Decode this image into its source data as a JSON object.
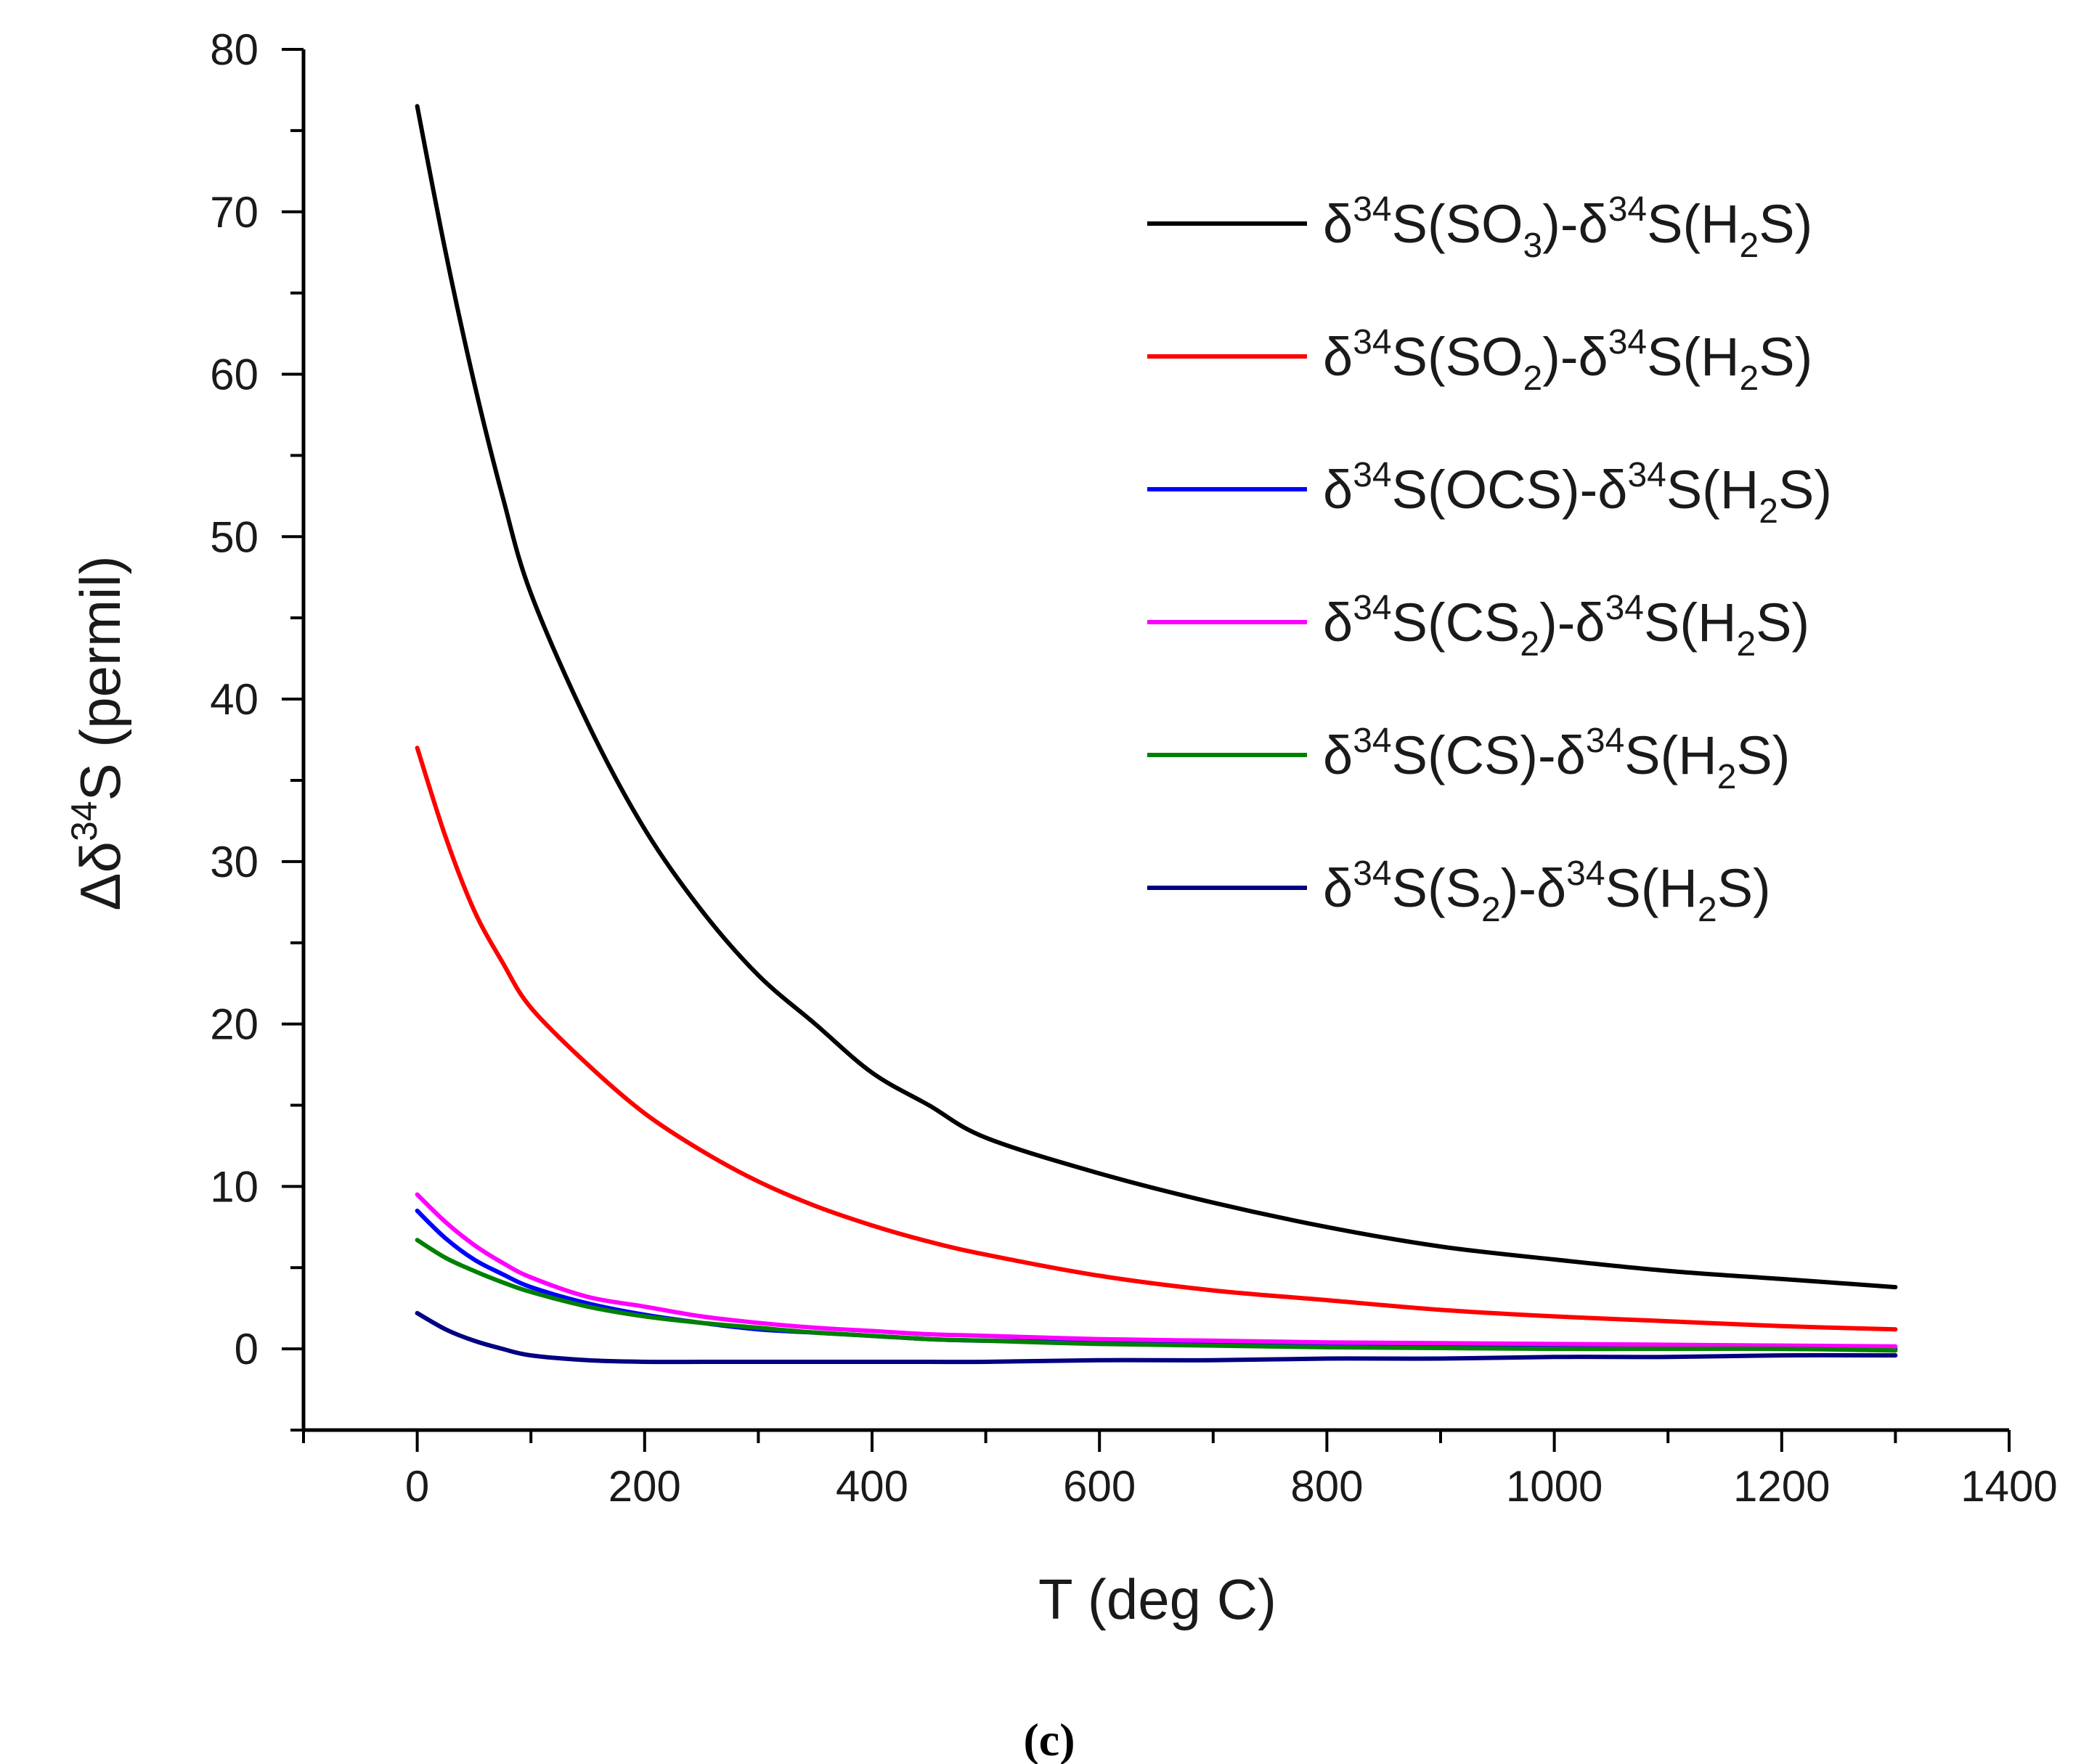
{
  "chart_data": {
    "type": "line",
    "xlabel": "T (deg C)",
    "ylabel_parts": {
      "prefix": "Δδ",
      "sup": "34",
      "suffix": "S (permil)"
    },
    "xlim": [
      -100,
      1400
    ],
    "ylim": [
      -5,
      80
    ],
    "xticks": [
      0,
      200,
      400,
      600,
      800,
      1000,
      1200,
      1400
    ],
    "yticks": [
      0,
      10,
      20,
      30,
      40,
      50,
      60,
      70,
      80
    ],
    "legend_position": "top-right",
    "caption": "(c)",
    "x": [
      0,
      25,
      50,
      75,
      100,
      150,
      200,
      250,
      300,
      350,
      400,
      450,
      500,
      600,
      700,
      800,
      900,
      1000,
      1100,
      1200,
      1300
    ],
    "series": [
      {
        "name": "SO3-H2S",
        "label": [
          "δ",
          "34",
          "S(SO",
          "3",
          ")-δ",
          "34",
          "S(H",
          "2",
          "S)"
        ],
        "color": "#000000",
        "values": [
          76.5,
          67.5,
          59.5,
          52.5,
          46.5,
          38.5,
          32.0,
          27.0,
          23.0,
          20.0,
          17.0,
          15.0,
          13.0,
          10.8,
          9.0,
          7.5,
          6.3,
          5.5,
          4.8,
          4.3,
          3.8
        ]
      },
      {
        "name": "SO2-H2S",
        "label": [
          "δ",
          "34",
          "S(SO",
          "2",
          ")-δ",
          "34",
          "S(H",
          "2",
          "S)"
        ],
        "color": "#ff0000",
        "values": [
          37.0,
          31.5,
          27.0,
          23.8,
          21.0,
          17.5,
          14.5,
          12.2,
          10.3,
          8.8,
          7.6,
          6.6,
          5.8,
          4.5,
          3.6,
          3.0,
          2.4,
          2.0,
          1.7,
          1.4,
          1.2
        ]
      },
      {
        "name": "OCS-H2S",
        "label": [
          "δ",
          "34",
          "S(OCS)-δ",
          "34",
          "S(H",
          "2",
          "S)"
        ],
        "color": "#0000ff",
        "values": [
          8.5,
          6.8,
          5.5,
          4.6,
          3.8,
          2.8,
          2.1,
          1.6,
          1.2,
          1.0,
          0.8,
          0.6,
          0.5,
          0.4,
          0.3,
          0.2,
          0.15,
          0.1,
          0.05,
          0.0,
          0.0
        ]
      },
      {
        "name": "CS2-H2S",
        "label": [
          "δ",
          "34",
          "S(CS",
          "2",
          ")-δ",
          "34",
          "S(H",
          "2",
          "S)"
        ],
        "color": "#ff00ff",
        "values": [
          9.5,
          7.8,
          6.4,
          5.3,
          4.4,
          3.2,
          2.6,
          2.0,
          1.6,
          1.3,
          1.1,
          0.9,
          0.8,
          0.6,
          0.5,
          0.4,
          0.35,
          0.3,
          0.25,
          0.2,
          0.15
        ]
      },
      {
        "name": "CS-H2S",
        "label": [
          "δ",
          "34",
          "S(CS)-δ",
          "34",
          "S(H",
          "2",
          "S)"
        ],
        "color": "#008000",
        "values": [
          6.7,
          5.6,
          4.8,
          4.1,
          3.5,
          2.6,
          2.0,
          1.6,
          1.3,
          1.0,
          0.8,
          0.6,
          0.5,
          0.3,
          0.2,
          0.1,
          0.05,
          0.0,
          0.0,
          0.0,
          -0.1
        ]
      },
      {
        "name": "S2-H2S",
        "label": [
          "δ",
          "34",
          "S(S",
          "2",
          ")-δ",
          "34",
          "S(H",
          "2",
          "S)"
        ],
        "color": "#000080",
        "values": [
          2.2,
          1.2,
          0.5,
          0.0,
          -0.4,
          -0.7,
          -0.8,
          -0.8,
          -0.8,
          -0.8,
          -0.8,
          -0.8,
          -0.8,
          -0.7,
          -0.7,
          -0.6,
          -0.6,
          -0.5,
          -0.5,
          -0.4,
          -0.4
        ]
      }
    ]
  }
}
